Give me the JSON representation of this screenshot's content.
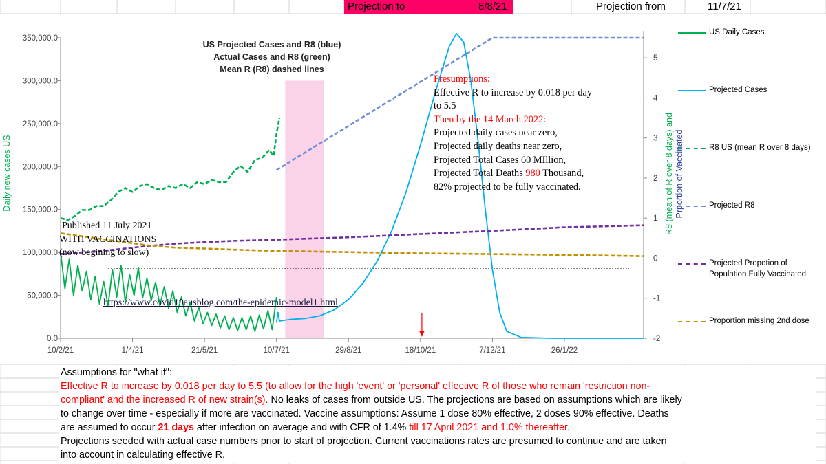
{
  "sheet_header": {
    "projection_to_label": "Projection to",
    "projection_to_value": "8/8/21",
    "projection_from_label": "Projection from",
    "projection_from_value": "11/7/21",
    "highlight_color": "#ff0066"
  },
  "chart_data": {
    "type": "line",
    "title_lines": [
      "US Projected Cases and R8 (blue)",
      "Actual Cases and R8 (green)",
      "Mean R (R8) dashed lines"
    ],
    "ylabel": "Daily new cases US",
    "y2label_lines": [
      "R8 (mean of R over 8 days) and",
      "Prportion of Vaccinated"
    ],
    "ylim": [
      0,
      350000
    ],
    "y2lim": [
      -2,
      5.5
    ],
    "y_ticks": [
      "0.0",
      "50,000.0",
      "100,000.0",
      "150,000.0",
      "200,000.0",
      "250,000.0",
      "300,000.0",
      "350,000.0"
    ],
    "y_tick_values": [
      0,
      50000,
      100000,
      150000,
      200000,
      250000,
      300000,
      350000
    ],
    "y2_ticks": [
      "-2",
      "-1",
      "0",
      "1",
      "2",
      "3",
      "4",
      "5"
    ],
    "y2_tick_values": [
      -2,
      -1,
      0,
      1,
      2,
      3,
      4,
      5
    ],
    "x_ticks": [
      "10/2/21",
      "1/4/21",
      "21/5/21",
      "10/7/21",
      "29/8/21",
      "18/10/21",
      "7/12/21",
      "26/1/22"
    ],
    "x_tick_days": [
      0,
      50,
      100,
      150,
      200,
      250,
      300,
      350
    ],
    "x_unit": "days since 10/2/21",
    "x_range_days": [
      0,
      405
    ],
    "shaded_region_days": [
      156,
      183
    ],
    "shaded_color": "#fbd3e9",
    "arrow_day": 251,
    "reference_line": {
      "y": 81000,
      "x_days": [
        33,
        395
      ]
    },
    "series": [
      {
        "name": "US Daily Cases",
        "color": "#00b050",
        "style": "solid",
        "axis": "primary",
        "x": [
          0,
          3,
          6,
          9,
          12,
          15,
          18,
          21,
          24,
          27,
          30,
          33,
          36,
          39,
          42,
          45,
          48,
          51,
          54,
          57,
          60,
          63,
          66,
          69,
          72,
          75,
          78,
          81,
          84,
          87,
          90,
          93,
          96,
          99,
          102,
          105,
          108,
          111,
          114,
          117,
          120,
          123,
          126,
          129,
          132,
          135,
          138,
          141,
          144,
          147,
          150
        ],
        "y": [
          100000,
          58000,
          92000,
          50000,
          85000,
          55000,
          78000,
          45000,
          72000,
          40000,
          66000,
          38000,
          80000,
          48000,
          85000,
          42000,
          74000,
          50000,
          82000,
          47000,
          70000,
          44000,
          65000,
          38000,
          60000,
          35000,
          55000,
          30000,
          48000,
          26000,
          42000,
          20000,
          36000,
          17000,
          30000,
          15000,
          28000,
          12000,
          26000,
          10000,
          24000,
          9000,
          24000,
          10000,
          26000,
          8000,
          27000,
          11000,
          32000,
          10000,
          48000
        ]
      },
      {
        "name": "Projected Cases",
        "color": "#00b0f0",
        "style": "solid",
        "axis": "primary",
        "x": [
          150,
          151,
          152,
          160,
          170,
          180,
          190,
          200,
          210,
          220,
          230,
          240,
          250,
          260,
          270,
          275,
          280,
          285,
          290,
          295,
          300,
          305,
          310,
          320,
          330,
          340,
          350,
          405
        ],
        "y": [
          18000,
          30000,
          20000,
          22000,
          23000,
          26000,
          33000,
          45000,
          64000,
          90000,
          125000,
          170000,
          225000,
          285000,
          340000,
          355000,
          345000,
          300000,
          230000,
          150000,
          80000,
          30000,
          8000,
          1000,
          500,
          0,
          0,
          0
        ]
      },
      {
        "name": "R8 US (mean R over 8 days)",
        "color": "#00b050",
        "style": "dashed",
        "axis": "secondary",
        "x": [
          0,
          5,
          10,
          15,
          20,
          25,
          30,
          35,
          40,
          45,
          50,
          55,
          60,
          65,
          70,
          75,
          80,
          85,
          90,
          95,
          100,
          105,
          110,
          115,
          120,
          125,
          130,
          135,
          140,
          145,
          148,
          150,
          152
        ],
        "y": [
          1.0,
          0.95,
          1.05,
          1.2,
          1.2,
          1.3,
          1.3,
          1.45,
          1.65,
          1.75,
          1.65,
          1.8,
          1.85,
          1.75,
          1.7,
          1.8,
          1.75,
          1.85,
          1.75,
          1.9,
          1.85,
          1.95,
          1.9,
          1.9,
          2.15,
          2.3,
          2.15,
          2.45,
          2.5,
          2.7,
          2.55,
          3.1,
          3.5
        ]
      },
      {
        "name": "Projected R8",
        "color": "#6b8fd4",
        "style": "dashed",
        "axis": "secondary",
        "x": [
          150,
          300,
          405
        ],
        "y": [
          2.2,
          5.5,
          5.5
        ]
      },
      {
        "name": "Projected Propotion of Population Fully Vaccinated",
        "color": "#7030a0",
        "style": "dashed",
        "axis": "secondary",
        "x": [
          0,
          20,
          40,
          60,
          80,
          100,
          120,
          150,
          200,
          250,
          300,
          350,
          405
        ],
        "y": [
          0.1,
          0.15,
          0.22,
          0.3,
          0.36,
          0.4,
          0.43,
          0.46,
          0.52,
          0.6,
          0.68,
          0.77,
          0.82
        ]
      },
      {
        "name": "Proportion missing 2nd dose",
        "color": "#c09000",
        "style": "dashed",
        "axis": "secondary",
        "x": [
          0,
          20,
          40,
          60,
          80,
          100,
          120,
          150,
          200,
          250,
          300,
          350,
          405
        ],
        "y": [
          0.62,
          0.52,
          0.42,
          0.32,
          0.26,
          0.24,
          0.21,
          0.18,
          0.15,
          0.12,
          0.1,
          0.08,
          0.05
        ]
      }
    ]
  },
  "annotations": {
    "published": "Published 11 July  2021",
    "with_vaccinations": "WITH VACCINATIONS",
    "now_slowing": "(now begining to slow)",
    "link": "https://www.covid19ausblog.com/the-epidemic-model1.html",
    "presumptions_title": "Presumptions:",
    "presumption_1": "Effective R to increase by 0.018 per day",
    "presumption_2": "to 5.5",
    "then_by": "Then by the 14 March 2022:",
    "line_cases_zero": "Projected daily cases near zero,",
    "line_deaths_zero": "Projected daily deaths near zero,",
    "line_total_cases": "Projected Total Cases 60 MIllion,",
    "line_total_deaths_pre": "Projected Total Deaths ",
    "line_total_deaths_num": "980",
    "line_total_deaths_post": " Thousand,",
    "line_vaccinated": "82% projected to be fully vaccinated."
  },
  "assumptions": {
    "heading": "Assumptions for \"what if\":",
    "l1_red": "Effective R to increase by 0.018 per day to 5.5 (to allow for the high 'event' or 'personal' effective R of those who remain 'restriction non-",
    "l2_red": "compliant' and the increased R of new strain(s).",
    "l2_black": " No leaks of cases from outside US. The projections are based on assumptions which are likely",
    "l3": "to change over time - especially if more are vaccinated. Vaccine assumptions: Assume 1 dose 80% effective, 2 doses 90% effective. Deaths",
    "l4_pre": "are assumed to occur ",
    "l4_bold": "21 days",
    "l4_mid": " after infection on average and with CFR of 1.4% ",
    "l4_red": "till 17 April 2021 and 1.0% thereafter.",
    "l5": "Projections seeded with actual case numbers prior to start of projection. Current vaccinations rates are presumed to continue and are taken",
    "l6": "into account in calculating effective R."
  }
}
